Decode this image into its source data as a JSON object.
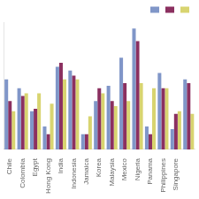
{
  "chart_data": {
    "type": "bar",
    "categories": [
      "Chile",
      "Colombia",
      "Egypt",
      "Hong Kong",
      "India",
      "Indonesia",
      "Jamaica",
      "Korea",
      "Malaysia",
      "Mexico",
      "Nigeria",
      "Panama",
      "Philippines",
      "Singapore",
      null
    ],
    "series": [
      {
        "color": "#8096c8",
        "values": [
          55,
          48,
          30,
          18,
          65,
          62,
          12,
          38,
          50,
          72,
          95,
          18,
          60,
          16,
          55
        ]
      },
      {
        "color": "#8b3060",
        "values": [
          38,
          42,
          32,
          12,
          68,
          58,
          12,
          48,
          38,
          52,
          85,
          12,
          48,
          28,
          52
        ]
      },
      {
        "color": "#d8d470",
        "values": [
          30,
          44,
          44,
          36,
          55,
          55,
          26,
          44,
          34,
          38,
          52,
          48,
          48,
          30,
          28
        ]
      }
    ],
    "ylim": [
      0,
      100
    ],
    "yticks": [],
    "grid": false,
    "tick_labels": "x",
    "legend": "upper right"
  }
}
